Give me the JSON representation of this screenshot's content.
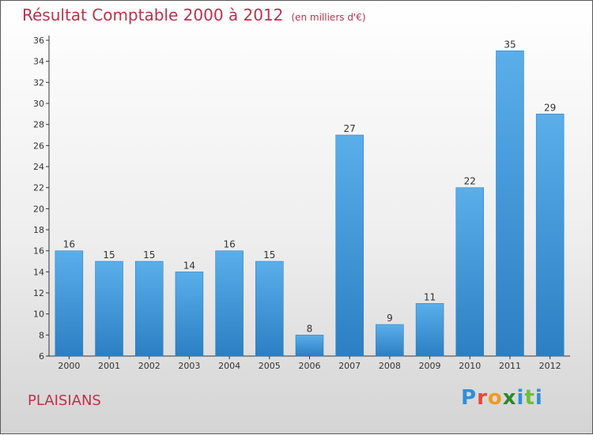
{
  "header": {
    "title": "Résultat Comptable 2000 à 2012",
    "subtitle": "(en milliers d'€)"
  },
  "footer": {
    "commune": "PLAISIANS",
    "logo": "Proxiti"
  },
  "colors": {
    "title": "#c0304a",
    "bar_top": "#5aaeea",
    "bar_bottom": "#2c7fc3",
    "axis": "#333333"
  },
  "chart_data": {
    "type": "bar",
    "title": "Résultat Comptable 2000 à 2012",
    "subtitle": "(en milliers d'€)",
    "categories": [
      "2000",
      "2001",
      "2002",
      "2003",
      "2004",
      "2005",
      "2006",
      "2007",
      "2008",
      "2009",
      "2010",
      "2011",
      "2012"
    ],
    "values": [
      16,
      15,
      15,
      14,
      16,
      15,
      8,
      27,
      9,
      11,
      22,
      35,
      29
    ],
    "ylim": [
      6,
      36
    ],
    "yticks": [
      6,
      8,
      10,
      12,
      14,
      16,
      18,
      20,
      22,
      24,
      26,
      28,
      30,
      32,
      34,
      36
    ],
    "grid": false,
    "data_labels": true
  }
}
